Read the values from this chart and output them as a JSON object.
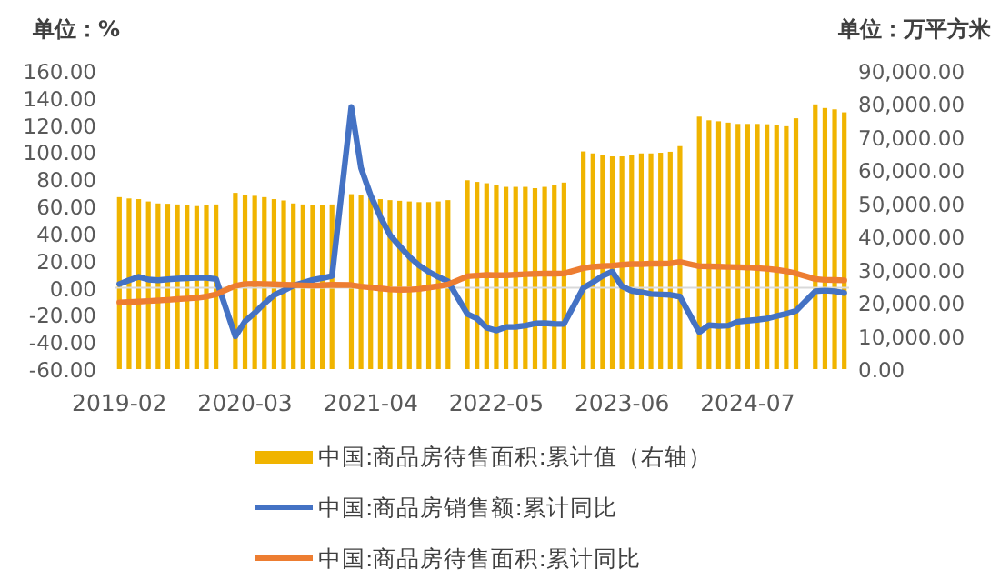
{
  "chart_data": {
    "type": "bar",
    "ylabel": "单位：%",
    "y2label": "单位：万平方米",
    "categories": [
      "2019-02",
      null,
      null,
      null,
      null,
      null,
      null,
      null,
      null,
      null,
      null,
      null,
      null,
      "2020-03",
      null,
      null,
      null,
      null,
      null,
      null,
      null,
      null,
      null,
      null,
      null,
      null,
      "2021-04",
      null,
      null,
      null,
      null,
      null,
      null,
      null,
      null,
      null,
      null,
      null,
      null,
      "2022-05",
      null,
      null,
      null,
      null,
      null,
      null,
      null,
      null,
      null,
      null,
      null,
      null,
      "2023-06",
      null,
      null,
      null,
      null,
      null,
      null,
      null,
      null,
      null,
      null,
      null,
      null,
      "2024-07",
      null,
      null,
      null,
      null,
      null,
      null,
      null,
      null,
      null,
      null
    ],
    "series": [
      {
        "name": "中国:商品房待售面积:累计值（右轴）",
        "axis": "y2",
        "color": "#f0b400",
        "values": [
          51900,
          51500,
          51300,
          50600,
          50000,
          49900,
          49700,
          49500,
          49200,
          49500,
          49700,
          null,
          53200,
          52600,
          52300,
          51900,
          51300,
          50900,
          50000,
          49700,
          49500,
          49500,
          49700,
          null,
          52800,
          52400,
          51700,
          51300,
          51000,
          50800,
          50600,
          50400,
          50400,
          50600,
          51000,
          null,
          57000,
          56500,
          56100,
          55600,
          55000,
          55000,
          55000,
          54600,
          55000,
          55600,
          56300,
          null,
          65700,
          65100,
          64700,
          64200,
          64200,
          64700,
          65100,
          65100,
          65300,
          65600,
          67300,
          null,
          76200,
          75100,
          74800,
          74400,
          74000,
          74000,
          74000,
          73900,
          73700,
          73300,
          75700,
          null,
          79900,
          78800,
          78400,
          77500
        ]
      },
      {
        "name": "中国:商品房销售额:累计同比",
        "type": "line",
        "color": "#4472c4",
        "values": [
          2.8,
          5.6,
          8.1,
          6.1,
          5.6,
          6.2,
          6.7,
          7.1,
          7.3,
          7.3,
          6.5,
          null,
          -35.9,
          -24.7,
          -18.6,
          -11.6,
          -5.4,
          -2.1,
          1.6,
          3.7,
          5.8,
          7.2,
          8.7,
          null,
          133.4,
          88.5,
          68.2,
          52.4,
          38.9,
          30.7,
          22.9,
          16.6,
          11.8,
          8.0,
          4.8,
          null,
          -19.3,
          -22.7,
          -29.5,
          -31.5,
          -28.9,
          -28.8,
          -27.9,
          -26.3,
          -26.1,
          -26.6,
          -26.7,
          null,
          -0.1,
          4.1,
          8.8,
          11.9,
          1.1,
          -2.3,
          -3.2,
          -4.6,
          -4.9,
          -5.2,
          -6.5,
          null,
          -32.7,
          -27.6,
          -28.1,
          -27.9,
          -25.0,
          -24.3,
          -23.6,
          -22.7,
          -20.9,
          -19.2,
          -17.1,
          null,
          -2.6,
          -2.1,
          -2.6,
          -3.8
        ]
      },
      {
        "name": "中国:商品房待售面积:累计同比",
        "type": "line",
        "color": "#ed7d31",
        "values": [
          -10.8,
          -10.5,
          -10.2,
          -9.8,
          -9.4,
          -8.9,
          -8.4,
          -7.9,
          -7.4,
          -6.5,
          -4.9,
          null,
          1.5,
          2.8,
          3.0,
          2.8,
          2.5,
          2.2,
          2.0,
          1.8,
          1.6,
          1.9,
          2.2,
          null,
          2.0,
          1.0,
          0.3,
          -0.5,
          -1.2,
          -1.5,
          -1.4,
          -0.9,
          0.2,
          1.2,
          2.4,
          null,
          8.5,
          9.0,
          9.4,
          9.3,
          9.3,
          9.6,
          10.0,
          10.3,
          10.5,
          10.4,
          10.5,
          null,
          14.5,
          15.5,
          16.0,
          16.4,
          17.0,
          17.5,
          17.5,
          17.8,
          17.8,
          18.0,
          19.0,
          null,
          15.9,
          15.8,
          15.6,
          15.4,
          15.2,
          15.0,
          14.5,
          14.0,
          13.3,
          12.2,
          10.6,
          null,
          6.5,
          5.8,
          5.7,
          5.5
        ]
      }
    ],
    "ylim": [
      -60,
      160
    ],
    "yticks": [
      {
        "value": -60,
        "label": "-60.00"
      },
      {
        "value": -40,
        "label": "-40.00"
      },
      {
        "value": -20,
        "label": "-20.00"
      },
      {
        "value": 0,
        "label": "0.00"
      },
      {
        "value": 20,
        "label": "20.00"
      },
      {
        "value": 40,
        "label": "40.00"
      },
      {
        "value": 60,
        "label": "60.00"
      },
      {
        "value": 80,
        "label": "80.00"
      },
      {
        "value": 100,
        "label": "100.00"
      },
      {
        "value": 120,
        "label": "120.00"
      },
      {
        "value": 140,
        "label": "140.00"
      },
      {
        "value": 160,
        "label": "160.00"
      }
    ],
    "y2lim": [
      0,
      90000
    ],
    "y2ticks": [
      {
        "value": 0,
        "label": "0.00"
      },
      {
        "value": 10000,
        "label": "10,000.00"
      },
      {
        "value": 20000,
        "label": "20,000.00"
      },
      {
        "value": 30000,
        "label": "30,000.00"
      },
      {
        "value": 40000,
        "label": "40,000.00"
      },
      {
        "value": 50000,
        "label": "50,000.00"
      },
      {
        "value": 60000,
        "label": "60,000.00"
      },
      {
        "value": 70000,
        "label": "70,000.00"
      },
      {
        "value": 80000,
        "label": "80,000.00"
      },
      {
        "value": 90000,
        "label": "90,000.00"
      }
    ],
    "legend": "bottom"
  }
}
